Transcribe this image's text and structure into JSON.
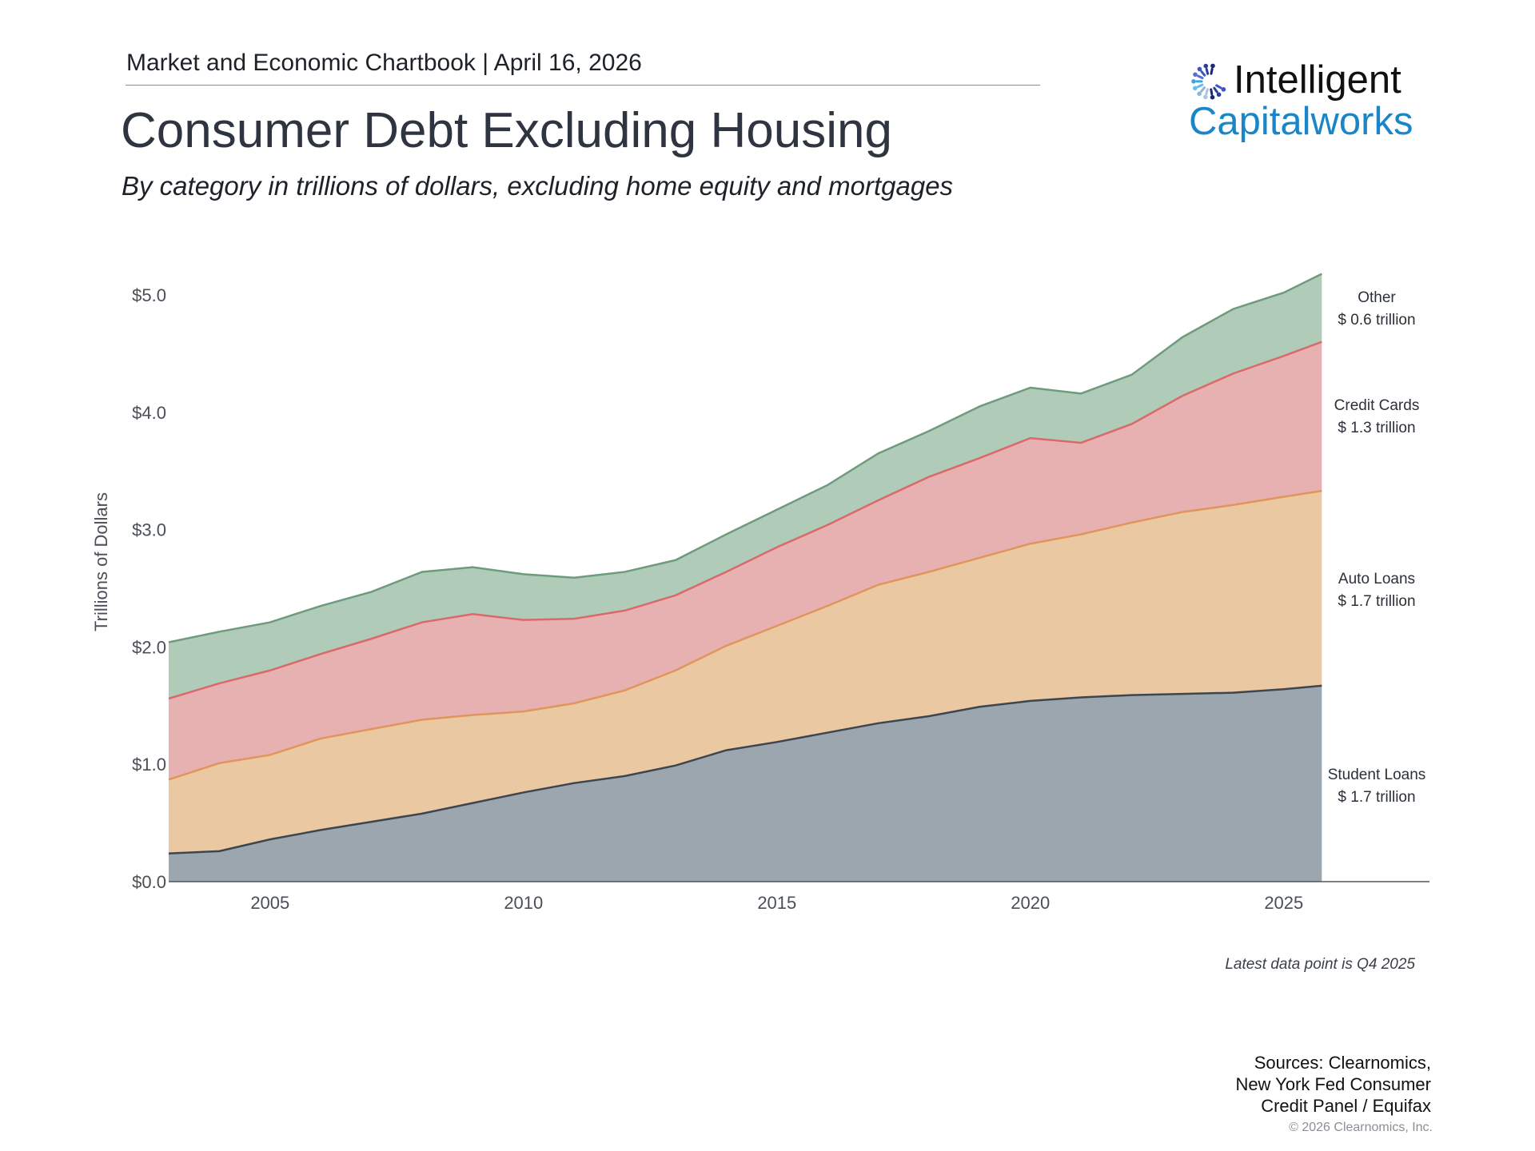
{
  "header": {
    "chartbook": "Market and Economic Chartbook | April 16, 2026",
    "title": "Consumer Debt Excluding Housing",
    "subtitle": "By category in trillions of dollars, excluding home equity and mortgages"
  },
  "logo": {
    "line1": "Intelligent",
    "line2": "Capitalworks",
    "color": "#1a86c8"
  },
  "footer": {
    "latest": "Latest data point is Q4 2025",
    "sources": [
      "Sources: Clearnomics,",
      "New York Fed Consumer",
      "Credit Panel / Equifax"
    ],
    "copyright": "© 2026 Clearnomics, Inc."
  },
  "chart_data": {
    "type": "area",
    "stacked": true,
    "title": "Consumer Debt Excluding Housing",
    "ylabel": "Trillions of Dollars",
    "xlabel": "",
    "ylim": [
      0,
      5.0
    ],
    "xlim": [
      2003,
      2028
    ],
    "yticks": [
      "$0.0",
      "$1.0",
      "$2.0",
      "$3.0",
      "$4.0",
      "$5.0"
    ],
    "ytick_values": [
      0,
      1,
      2,
      3,
      4,
      5
    ],
    "xticks": [
      "2005",
      "2010",
      "2015",
      "2020",
      "2025"
    ],
    "grid": false,
    "x": [
      "2003 Q1",
      "2004 Q1",
      "2005 Q1",
      "2006 Q1",
      "2007 Q1",
      "2008 Q1",
      "2009 Q1",
      "2010 Q1",
      "2011 Q1",
      "2012 Q1",
      "2013 Q1",
      "2014 Q1",
      "2015 Q1",
      "2016 Q1",
      "2017 Q1",
      "2018 Q1",
      "2019 Q1",
      "2020 Q1",
      "2021 Q1",
      "2022 Q1",
      "2023 Q1",
      "2024 Q1",
      "2025 Q1",
      "2025 Q4"
    ],
    "series": [
      {
        "name": "Student Loans",
        "label": "$ 1.7 trillion",
        "fill": "#9ca6ae",
        "line": "#3d4650",
        "values": [
          0.24,
          0.26,
          0.36,
          0.44,
          0.51,
          0.58,
          0.67,
          0.76,
          0.84,
          0.9,
          0.99,
          1.12,
          1.19,
          1.27,
          1.35,
          1.41,
          1.49,
          1.54,
          1.57,
          1.59,
          1.6,
          1.61,
          1.64,
          1.67
        ]
      },
      {
        "name": "Auto Loans",
        "label": "$ 1.7 trillion",
        "fill": "#e9c8a2",
        "line": "#e0955a",
        "values": [
          0.63,
          0.75,
          0.72,
          0.78,
          0.79,
          0.8,
          0.75,
          0.69,
          0.68,
          0.73,
          0.81,
          0.89,
          0.99,
          1.08,
          1.18,
          1.23,
          1.27,
          1.34,
          1.39,
          1.47,
          1.55,
          1.6,
          1.64,
          1.66
        ]
      },
      {
        "name": "Credit Cards",
        "label": "$ 1.3 trillion",
        "fill": "#e8b1b1",
        "line": "#d9696a",
        "values": [
          0.69,
          0.68,
          0.72,
          0.72,
          0.77,
          0.83,
          0.86,
          0.78,
          0.72,
          0.68,
          0.64,
          0.63,
          0.67,
          0.69,
          0.72,
          0.81,
          0.85,
          0.9,
          0.78,
          0.84,
          0.99,
          1.12,
          1.2,
          1.27
        ]
      },
      {
        "name": "Other",
        "label": "$ 0.6 trillion",
        "fill": "#b1cbb9",
        "line": "#6e9b7c",
        "values": [
          0.48,
          0.44,
          0.41,
          0.41,
          0.4,
          0.43,
          0.4,
          0.39,
          0.35,
          0.33,
          0.3,
          0.32,
          0.32,
          0.34,
          0.4,
          0.39,
          0.44,
          0.43,
          0.42,
          0.42,
          0.5,
          0.55,
          0.54,
          0.58
        ]
      }
    ],
    "legend_placement": "right, inline at end of each series"
  }
}
